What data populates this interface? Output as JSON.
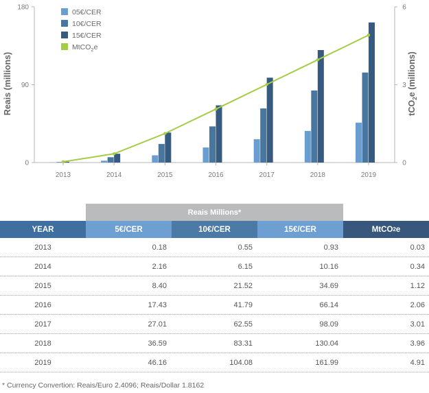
{
  "chart_data": {
    "type": "bar",
    "categories": [
      "2013",
      "2014",
      "2015",
      "2016",
      "2017",
      "2018",
      "2019"
    ],
    "series": [
      {
        "name": "05€/CER",
        "values": [
          0.18,
          2.16,
          8.4,
          17.43,
          27.01,
          36.59,
          46.16
        ],
        "color": "#6a9ed0"
      },
      {
        "name": "10€/CER",
        "values": [
          0.55,
          6.15,
          21.52,
          41.79,
          62.55,
          83.31,
          104.08
        ],
        "color": "#47779e"
      },
      {
        "name": "15€/CER",
        "values": [
          0.93,
          10.16,
          34.69,
          66.14,
          98.09,
          130.04,
          161.99
        ],
        "color": "#365a80"
      }
    ],
    "line_series": {
      "name_prefix": "MtCO",
      "name_sub": "2",
      "name_suffix": "e",
      "values": [
        0.03,
        0.34,
        1.12,
        2.06,
        3.01,
        3.96,
        4.91
      ],
      "color": "#a3cc47"
    },
    "ylabel_left": "Reais (millions)",
    "ylabel_right_prefix": "tCO",
    "ylabel_right_sub": "2",
    "ylabel_right_suffix": "e (millions)",
    "ylim_left": [
      0,
      180
    ],
    "yticks_left": [
      "0",
      "90",
      "180"
    ],
    "ylim_right": [
      0,
      6
    ],
    "yticks_right": [
      "0",
      "3",
      "6"
    ],
    "legend_placement": "top-left",
    "grid": false
  },
  "table": {
    "group_header": "Reais Millions*",
    "columns": [
      "YEAR",
      "5€/CER",
      "10€/CER",
      "15€/CER",
      "MtCO"
    ],
    "mtco_sub": "2",
    "mtco_suffix": "e",
    "header_colors": [
      "#3e6fa0",
      "#6d9fd2",
      "#4c7aa7",
      "#6d9fd2",
      "#37577c"
    ],
    "rows": [
      [
        "2013",
        "0.18",
        "0.55",
        "0.93",
        "0.03"
      ],
      [
        "2014",
        "2.16",
        "6.15",
        "10.16",
        "0.34"
      ],
      [
        "2015",
        "8.40",
        "21.52",
        "34.69",
        "1.12"
      ],
      [
        "2016",
        "17.43",
        "41.79",
        "66.14",
        "2.06"
      ],
      [
        "2017",
        "27.01",
        "62.55",
        "98.09",
        "3.01"
      ],
      [
        "2018",
        "36.59",
        "83.31",
        "130.04",
        "3.96"
      ],
      [
        "2019",
        "46.16",
        "104.08",
        "161.99",
        "4.91"
      ]
    ]
  },
  "footnote": "*  Currency Convertion: Reais/Euro 2.4096; Reais/Dollar 1.8162"
}
